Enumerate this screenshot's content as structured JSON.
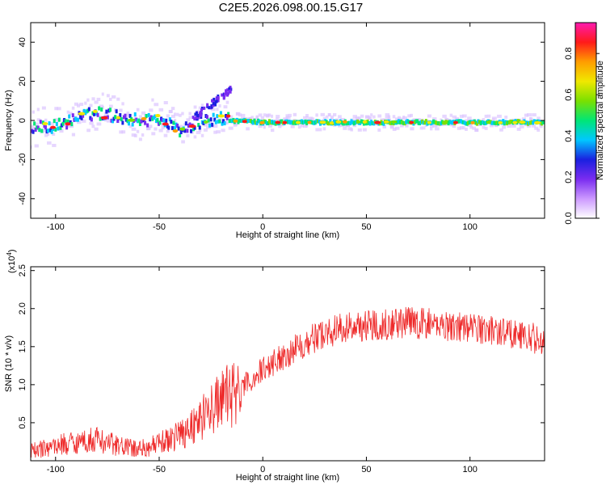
{
  "title": "C2E5.2026.098.00.15.G17",
  "colors": {
    "snr_line": "#ee2a2a",
    "spectrogram_colormap": [
      "#ffffff",
      "#cc99ff",
      "#7a2cf0",
      "#1a20e0",
      "#00c8ff",
      "#00e676",
      "#7be000",
      "#f0e800",
      "#ff9d00",
      "#ff1a1a",
      "#ff1ab0"
    ]
  },
  "chart_data": [
    {
      "type": "heatmap",
      "name": "spectrogram",
      "xlabel": "Height of straight line (km)",
      "ylabel": "Frequency (Hz)",
      "xlim": [
        -112,
        136
      ],
      "ylim": [
        -50,
        50
      ],
      "xticks": [
        -100,
        -50,
        0,
        50,
        100
      ],
      "yticks": [
        -40,
        -20,
        0,
        20,
        40
      ],
      "colorbar": {
        "label": "Normalized spectral amplitude",
        "range": [
          0.0,
          0.95
        ],
        "ticks": [
          0.0,
          0.2,
          0.4,
          0.6,
          0.8
        ]
      },
      "ridge": {
        "description_points_x": [
          -112,
          -100,
          -90,
          -80,
          -70,
          -60,
          -50,
          -40,
          -30,
          -20,
          -15,
          0,
          50,
          100,
          136
        ],
        "frequency_hz": [
          -4,
          -3,
          1,
          4,
          2,
          0,
          1,
          -5,
          -1,
          1,
          0,
          -1,
          -1,
          -1,
          -1
        ]
      }
    },
    {
      "type": "line",
      "name": "snr",
      "xlabel": "Height of straight line (km)",
      "ylabel": "SNR (10 * v/v)",
      "y_multiplier_label": "(x10",
      "y_multiplier_exp": "4",
      "y_multiplier_close": ")",
      "xlim": [
        -112,
        136
      ],
      "ylim": [
        0,
        2.55
      ],
      "xticks": [
        -100,
        -50,
        0,
        50,
        100
      ],
      "yticks": [
        0.5,
        1.0,
        1.5,
        2.0,
        2.5
      ],
      "trend": {
        "x": [
          -112,
          -100,
          -90,
          -80,
          -70,
          -60,
          -50,
          -40,
          -30,
          -20,
          -10,
          0,
          10,
          20,
          30,
          40,
          50,
          60,
          70,
          80,
          90,
          100,
          110,
          120,
          130,
          136
        ],
        "y": [
          0.12,
          0.2,
          0.25,
          0.28,
          0.2,
          0.15,
          0.22,
          0.35,
          0.55,
          0.8,
          0.95,
          1.2,
          1.38,
          1.55,
          1.68,
          1.75,
          1.78,
          1.8,
          1.82,
          1.8,
          1.78,
          1.75,
          1.72,
          1.68,
          1.62,
          1.55
        ]
      }
    }
  ]
}
